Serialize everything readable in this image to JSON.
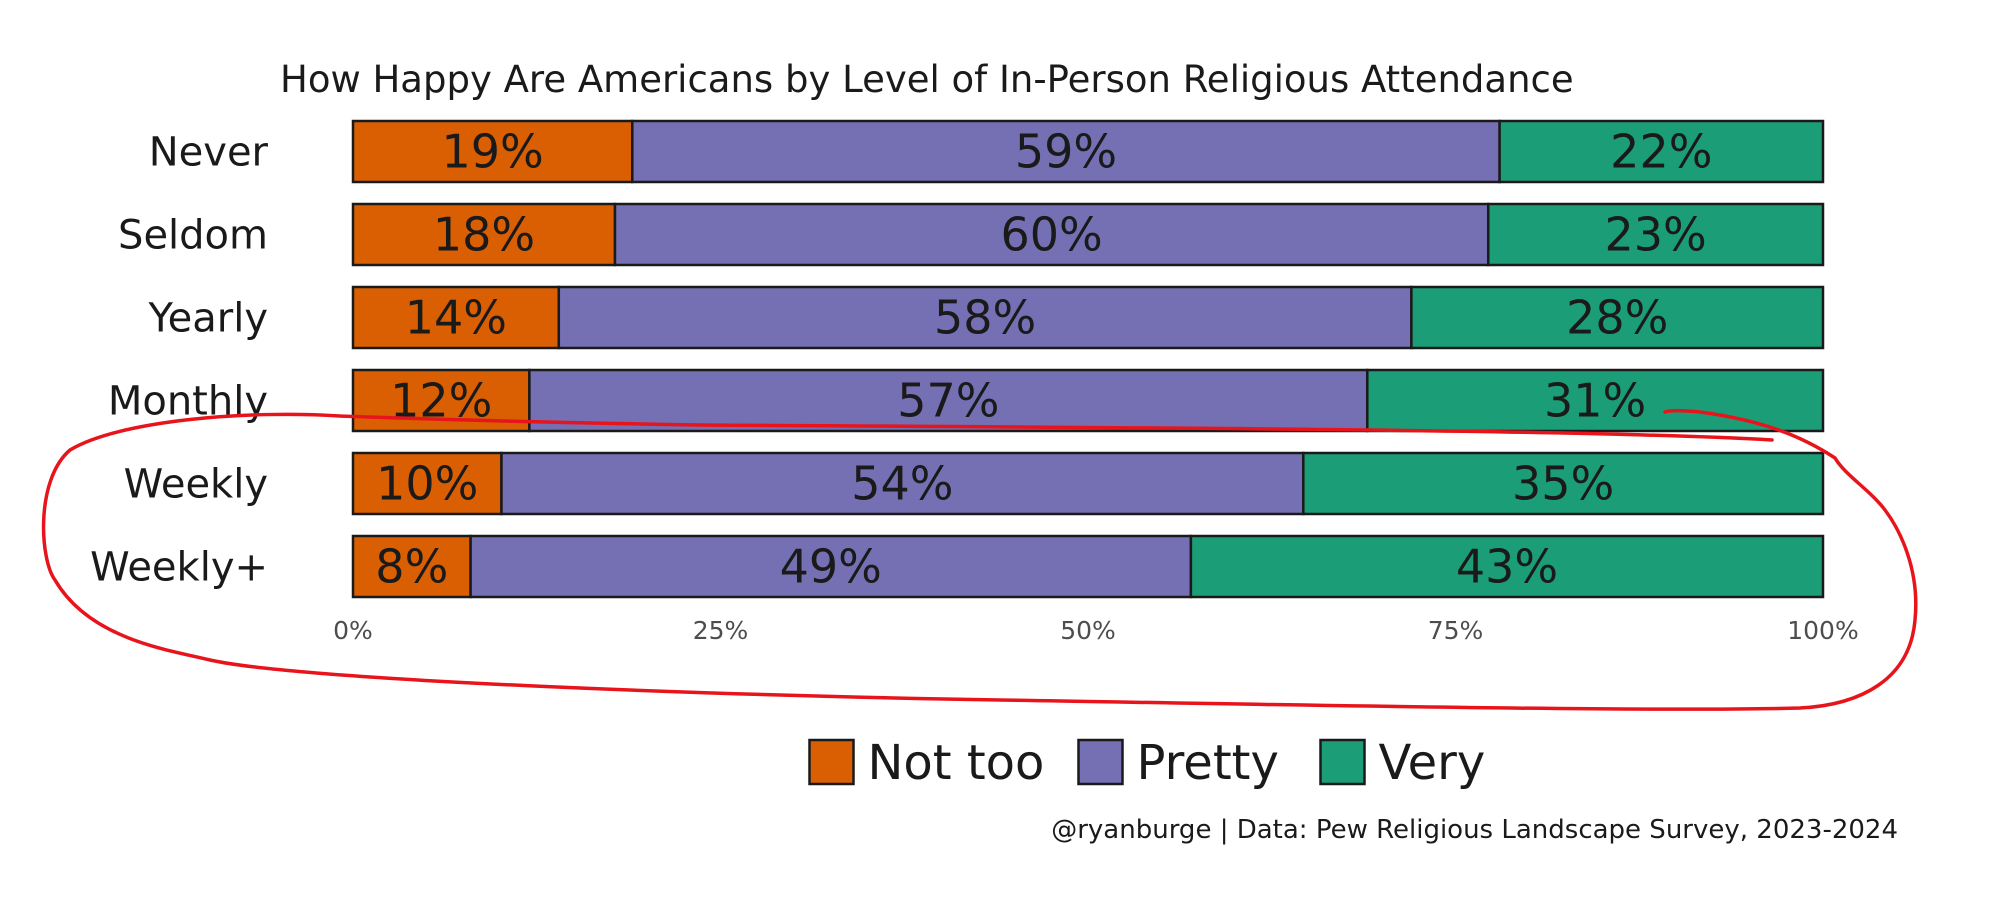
{
  "chart_data": {
    "type": "bar",
    "orientation": "horizontal",
    "stacked": "percent",
    "title": "How Happy Are Americans by Level of In-Person Religious Attendance",
    "categories": [
      "Never",
      "Seldom",
      "Yearly",
      "Monthly",
      "Weekly",
      "Weekly+"
    ],
    "series": [
      {
        "name": "Not too",
        "color": "#d95f02",
        "values": [
          19,
          18,
          14,
          12,
          10,
          8
        ]
      },
      {
        "name": "Pretty",
        "color": "#7570b3",
        "values": [
          59,
          60,
          58,
          57,
          54,
          49
        ]
      },
      {
        "name": "Very",
        "color": "#1b9e77",
        "values": [
          22,
          23,
          28,
          31,
          35,
          43
        ]
      }
    ],
    "data_labels": [
      [
        "19%",
        "59%",
        "22%"
      ],
      [
        "18%",
        "60%",
        "23%"
      ],
      [
        "14%",
        "58%",
        "28%"
      ],
      [
        "12%",
        "57%",
        "31%"
      ],
      [
        "10%",
        "54%",
        "35%"
      ],
      [
        "8%",
        "49%",
        "43%"
      ]
    ],
    "xlim": [
      0,
      100
    ],
    "x_ticks": [
      0,
      25,
      50,
      75,
      100
    ],
    "x_tick_labels": [
      "0%",
      "25%",
      "50%",
      "75%",
      "100%"
    ],
    "grid": false,
    "legend_position": "bottom",
    "caption": "@ryanburge | Data: Pew Religious Landscape Survey, 2023-2024",
    "annotation": {
      "type": "freehand-circle",
      "color": "#e8141b",
      "encloses": [
        "Weekly",
        "Weekly+"
      ]
    }
  }
}
